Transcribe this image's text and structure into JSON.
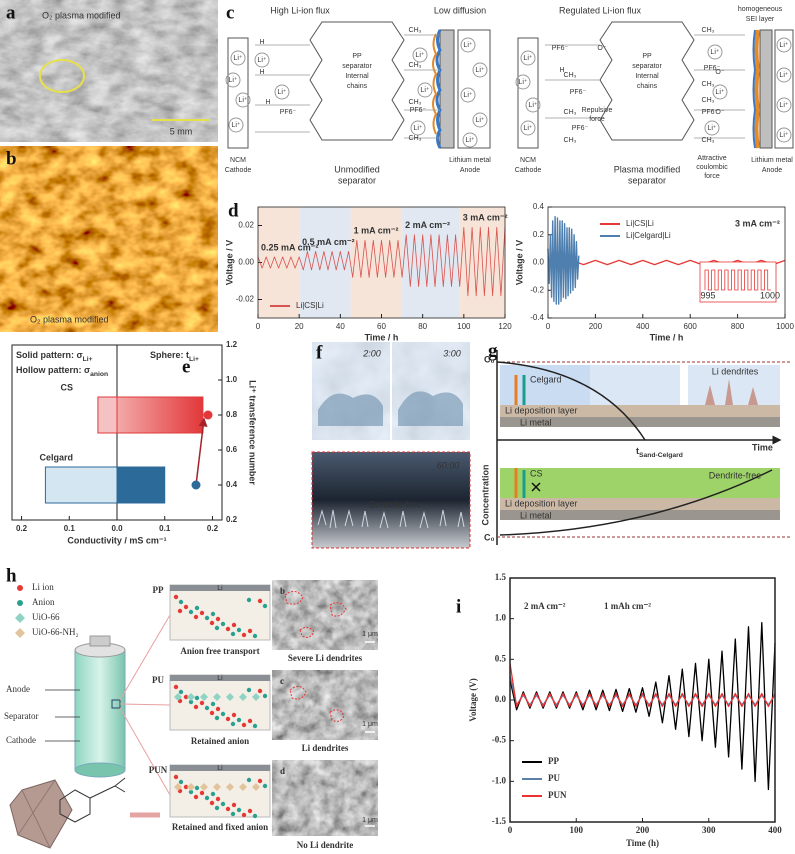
{
  "figure": {
    "labels": {
      "a": "a",
      "b": "b",
      "c": "c",
      "d": "d",
      "e": "e",
      "f": "f",
      "g": "g",
      "h": "h",
      "i": "i"
    },
    "a": {
      "caption": "O₂ plasma modified",
      "scale_bar": "5 mm"
    },
    "b": {
      "caption": "O₂ plasma modified"
    },
    "c": {
      "left": {
        "flux": "High Li-ion flux",
        "diffusion": "Low diffusion",
        "cathode": [
          "NCM",
          "Cathode"
        ],
        "separator": [
          "PP",
          "separator",
          "Internal",
          "chains"
        ],
        "separator_caption": [
          "Unmodified",
          "separator"
        ],
        "anode": [
          "Lithium metal",
          "Anode"
        ]
      },
      "right": {
        "flux": "Regulated Li-ion flux",
        "sei": [
          "homogeneous",
          "SEI layer"
        ],
        "cathode": [
          "NCM",
          "Cathode"
        ],
        "separator": [
          "PP",
          "separator",
          "Internal",
          "chains"
        ],
        "separator_caption": [
          "Plasma modified",
          "separator"
        ],
        "anode": [
          "Lithium metal",
          "Anode"
        ],
        "repulsive": [
          "Repulsive",
          "force"
        ],
        "attractive": [
          "Attractive",
          "coulombic",
          "force"
        ]
      },
      "species": {
        "li": "Li⁺",
        "pf6": "PF6⁻",
        "h": "H",
        "ch3": "CH₃",
        "o": "O⁻"
      }
    },
    "f": {
      "t1": "2:00",
      "t2": "3:00",
      "t3": "60:00",
      "note": "Dendrite-free"
    },
    "g": {
      "c0": "C₀",
      "celgard": "Celgard",
      "li_dendrites": "Li dendrites",
      "deposition": "Li deposition layer",
      "metal": "Li metal",
      "t": "t",
      "t_sub": "Sand-Celgard",
      "time": "Time",
      "concentration": "Concentration",
      "cs": "CS",
      "dendrite_free": "Dendrite-free"
    },
    "h": {
      "legend": [
        "Li ion",
        "Anion",
        "UiO-66",
        "UiO-66-NH₂"
      ],
      "battery": [
        "Anode",
        "Separator",
        "Cathode"
      ],
      "layer": "Li",
      "rows": [
        {
          "tag": "PP",
          "caption": "Anion free transport",
          "sem_label": "b",
          "sem_caption": "Severe Li dendrites",
          "scale": "1 μm"
        },
        {
          "tag": "PU",
          "caption": "Retained anion",
          "sem_label": "c",
          "sem_caption": "Li dendrites",
          "scale": "1 μm"
        },
        {
          "tag": "PUN",
          "caption": "Retained and fixed anion",
          "sem_label": "d",
          "sem_caption": "No Li dendrite",
          "scale": "1 μm"
        }
      ]
    }
  },
  "chart_data": [
    {
      "type": "line",
      "x": [
        0,
        2,
        4,
        6,
        8,
        10,
        12,
        14,
        16,
        18,
        20,
        22,
        24,
        26,
        28,
        30,
        32,
        34,
        36,
        38,
        40,
        42,
        44,
        46,
        48,
        50,
        52,
        54,
        56,
        58,
        60,
        62,
        64,
        66,
        68,
        70,
        72,
        74,
        76,
        78,
        80,
        82,
        84,
        86,
        88,
        90,
        92,
        94,
        96,
        98,
        100,
        102,
        104,
        106,
        108,
        110,
        112,
        114,
        116,
        118,
        120
      ],
      "series": [
        {
          "name": "Li|CS|Li",
          "color": "#d9534f",
          "values": [
            0.003,
            -0.003,
            0.003,
            -0.003,
            0.003,
            -0.003,
            0.003,
            -0.003,
            0.003,
            -0.003,
            0.003,
            -0.004,
            0.006,
            -0.004,
            0.006,
            -0.004,
            0.006,
            -0.004,
            0.006,
            -0.004,
            0.006,
            -0.004,
            0.006,
            -0.008,
            0.012,
            -0.008,
            0.012,
            -0.008,
            0.012,
            -0.008,
            0.012,
            -0.008,
            0.012,
            -0.008,
            0.012,
            -0.008,
            0.015,
            -0.013,
            0.015,
            -0.013,
            0.015,
            -0.013,
            0.015,
            -0.013,
            0.015,
            -0.013,
            0.015,
            -0.013,
            0.015,
            -0.013,
            0.019,
            -0.018,
            0.019,
            -0.018,
            0.019,
            -0.018,
            0.019,
            -0.018,
            0.019,
            -0.018,
            0.019
          ]
        }
      ],
      "xlim": [
        0,
        120
      ],
      "xticks": [
        0,
        20,
        40,
        60,
        80,
        100,
        120
      ],
      "ylim": [
        -0.03,
        0.03
      ],
      "yticks": [
        -0.02,
        {
          "value": 0,
          "label": "0.00"
        },
        0.02
      ],
      "xlabel": "Time / h",
      "ylabel": "Voltage / V",
      "legend": "lower-left",
      "annotations": [
        {
          "text": "0.25 mA cm⁻²",
          "span": [
            0,
            20
          ],
          "color": "#f7e4d8"
        },
        {
          "text": "0.5 mA cm⁻²",
          "span": [
            20,
            45
          ],
          "color": "#e1e8f1"
        },
        {
          "text": "1 mA cm⁻²",
          "span": [
            45,
            70
          ],
          "color": "#f7e4d8"
        },
        {
          "text": "2 mA cm⁻²",
          "span": [
            70,
            98
          ],
          "color": "#e1e8f1"
        },
        {
          "text": "3 mA cm⁻²",
          "span": [
            98,
            120
          ],
          "color": "#f7e4d8"
        }
      ]
    },
    {
      "type": "line",
      "series": [
        {
          "name": "Li|CS|Li",
          "color": "#e53935",
          "x": [
            0,
            50,
            100,
            150,
            200,
            250,
            300,
            350,
            400,
            450,
            500,
            550,
            600,
            650,
            700,
            750,
            800,
            850,
            900,
            950,
            1000
          ],
          "values": [
            0.015,
            -0.015,
            0.015,
            -0.015,
            0.015,
            -0.015,
            0.015,
            -0.015,
            0.015,
            -0.015,
            0.015,
            -0.015,
            0.015,
            -0.015,
            0.015,
            -0.015,
            0.015,
            -0.015,
            0.015,
            -0.015,
            0.015
          ]
        },
        {
          "name": "Li|Celgard|Li",
          "color": "#4f7fae",
          "x": [
            0,
            5,
            10,
            15,
            20,
            25,
            30,
            35,
            40,
            45,
            50,
            55,
            60,
            65,
            70,
            75,
            80,
            85,
            90,
            95,
            100,
            105,
            110,
            115,
            120,
            125,
            130
          ],
          "values": [
            0.1,
            -0.15,
            0.2,
            -0.25,
            0.3,
            -0.28,
            0.33,
            -0.3,
            0.32,
            -0.3,
            0.3,
            -0.28,
            0.3,
            -0.25,
            0.28,
            -0.26,
            0.25,
            -0.24,
            0.25,
            -0.22,
            0.24,
            -0.2,
            0.2,
            -0.18,
            0.15,
            -0.12,
            0.05
          ]
        }
      ],
      "xlim": [
        0,
        1000
      ],
      "xticks": [
        0,
        200,
        400,
        600,
        800,
        1000
      ],
      "ylim": [
        -0.4,
        0.4
      ],
      "yticks": [
        -0.4,
        -0.2,
        {
          "value": 0,
          "label": "0.0"
        },
        0.2,
        0.4
      ],
      "xlabel": "Time / h",
      "ylabel": "Voltage / V",
      "legend": "upper-right",
      "annotation": "3 mA cm⁻²",
      "inset_xticks": [
        995,
        1000
      ]
    },
    {
      "type": "hbar",
      "categories": [
        "CS",
        "Celgard"
      ],
      "values": [
        0.18,
        0.1
      ],
      "colors": [
        "#e2383a",
        "#2c6a99"
      ],
      "values_hollow": [
        -0.04,
        -0.15
      ],
      "colors_hollow": [
        "#f4c2c2",
        "#d3e6f1"
      ],
      "transference": [
        0.8,
        0.4
      ],
      "xlim": [
        -0.22,
        0.22
      ],
      "xticks": [
        {
          "value": -0.2,
          "label": "0.2"
        },
        {
          "value": -0.1,
          "label": "0.1"
        },
        {
          "value": 0,
          "label": "0.0"
        },
        0.1,
        0.2
      ],
      "y2lim": [
        0.2,
        1.2
      ],
      "y2ticks": [
        0.2,
        0.4,
        0.6,
        0.8,
        {
          "value": 1,
          "label": "1.0"
        },
        1.2
      ],
      "xlabel": "Conductivity / mS cm⁻¹",
      "y2label": "Li⁺ transference number",
      "notes": [
        {
          "text": "Solid pattern: σ",
          "sub": "Li+"
        },
        {
          "text": "Hollow pattern: σ",
          "sub": "anion"
        },
        {
          "text": "Sphere: t",
          "sub": "Li+"
        }
      ]
    },
    {
      "type": "line",
      "x": [
        0,
        10,
        20,
        30,
        40,
        50,
        60,
        70,
        80,
        90,
        100,
        110,
        120,
        130,
        140,
        150,
        160,
        170,
        180,
        190,
        200,
        210,
        220,
        230,
        240,
        250,
        260,
        270,
        280,
        290,
        300,
        310,
        320,
        330,
        340,
        350,
        360,
        370,
        380,
        390,
        400
      ],
      "series": [
        {
          "name": "PP",
          "color": "#000000",
          "values": [
            0.25,
            -0.12,
            0.1,
            -0.1,
            0.1,
            -0.1,
            0.1,
            -0.1,
            0.1,
            -0.1,
            0.1,
            -0.12,
            0.12,
            -0.12,
            0.12,
            -0.13,
            0.13,
            -0.14,
            0.14,
            -0.15,
            0.15,
            -0.2,
            0.22,
            -0.28,
            0.3,
            -0.36,
            0.38,
            -0.45,
            0.45,
            -0.5,
            0.5,
            -0.58,
            0.6,
            -0.7,
            0.75,
            -0.85,
            0.9,
            -1.0,
            0.95,
            -1.1,
            0.7
          ]
        },
        {
          "name": "PU",
          "color": "#5a7fa8",
          "values": [
            0.3,
            -0.06,
            0.06,
            -0.06,
            0.06,
            -0.06,
            0.06,
            -0.06,
            0.06,
            -0.06,
            0.06,
            -0.06,
            0.06,
            -0.06,
            0.06,
            -0.06,
            0.06,
            -0.06,
            0.06,
            -0.06,
            0.06,
            -0.06,
            0.06,
            -0.06,
            0.06,
            -0.06,
            0.06,
            -0.06,
            0.06,
            -0.06,
            0.06,
            -0.06,
            0.06,
            -0.06,
            0.06,
            -0.06,
            0.06,
            -0.06,
            0.06,
            -0.06,
            0.06
          ]
        },
        {
          "name": "PUN",
          "color": "#ee3030",
          "values": [
            0.45,
            -0.08,
            0.08,
            -0.08,
            0.08,
            -0.08,
            0.08,
            -0.08,
            0.08,
            -0.08,
            0.08,
            -0.08,
            0.08,
            -0.08,
            0.08,
            -0.08,
            0.08,
            -0.08,
            0.08,
            -0.08,
            0.08,
            -0.08,
            0.08,
            -0.08,
            0.08,
            -0.08,
            0.08,
            -0.08,
            0.08,
            -0.08,
            0.08,
            -0.08,
            0.08,
            -0.08,
            0.08,
            -0.08,
            0.08,
            -0.08,
            0.08,
            -0.08,
            0.08
          ]
        }
      ],
      "xlim": [
        0,
        400
      ],
      "xticks": [
        0,
        100,
        200,
        300,
        400
      ],
      "ylim": [
        -1.5,
        1.5
      ],
      "yticks": [
        -1.5,
        {
          "value": -1,
          "label": "-1.0"
        },
        -0.5,
        {
          "value": 0,
          "label": "0.0"
        },
        0.5,
        {
          "value": 1,
          "label": "1.0"
        },
        1.5
      ],
      "xlabel": "Time (h)",
      "ylabel": "Voltage (V)",
      "legend": "lower-left",
      "annotations": [
        "2 mA cm⁻²",
        "1 mAh cm⁻²"
      ]
    }
  ]
}
